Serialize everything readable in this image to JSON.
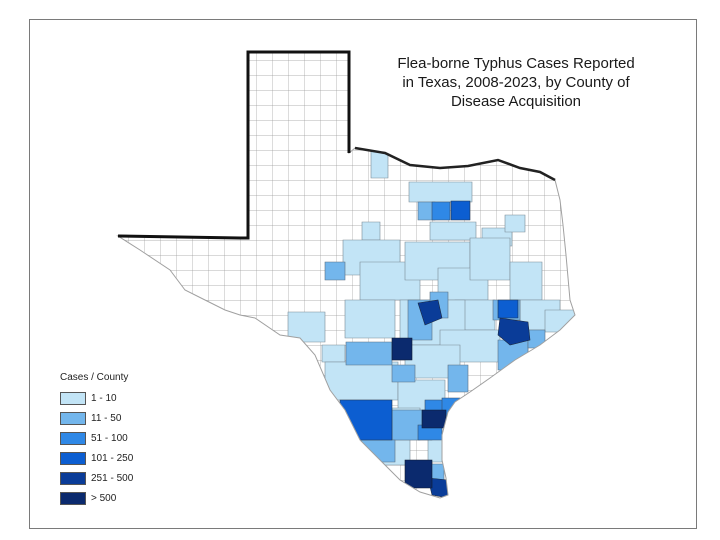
{
  "title_lines": [
    "Flea-borne Typhus Cases Reported",
    "in Texas, 2008-2023, by County of",
    "Disease Acquisition"
  ],
  "legend": {
    "title": "Cases / County",
    "items": [
      {
        "label": "1 - 10",
        "color": "#c2e4f6"
      },
      {
        "label": "11 - 50",
        "color": "#73b6ec"
      },
      {
        "label": "51 - 100",
        "color": "#2f88e6"
      },
      {
        "label": "101 - 250",
        "color": "#0c5ed1"
      },
      {
        "label": "251 - 500",
        "color": "#0a3c98"
      },
      {
        "label": "> 500",
        "color": "#0b2a6e"
      }
    ]
  },
  "colors": {
    "frame": "#7a7a7a",
    "county_border": "#9a9a9a",
    "state_outline": "#111111",
    "no_cases": "#ffffff"
  }
}
